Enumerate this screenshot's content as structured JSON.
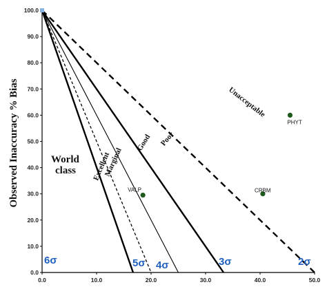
{
  "chart_data": {
    "type": "scatter",
    "title": "",
    "xlabel": "",
    "ylabel": "Observed Inaccuracy % Bias",
    "xlim": [
      0,
      50
    ],
    "ylim": [
      0,
      100
    ],
    "x_ticks": [
      "0.0",
      "10.0",
      "20.0",
      "30.0",
      "40.0",
      "50.0"
    ],
    "y_ticks": [
      "0.0",
      "10.0",
      "20.0",
      "30.0",
      "40.0",
      "50.0",
      "60.0",
      "70.0",
      "80.0",
      "90.0",
      "100.0"
    ],
    "grid": false,
    "points": [
      {
        "label": "PHYT",
        "x": 45.5,
        "y": 60.0,
        "color": "#1e5a1e"
      },
      {
        "label": "CRBM",
        "x": 40.5,
        "y": 30.0,
        "color": "#1e5a1e"
      },
      {
        "label": "VALP",
        "x": 18.5,
        "y": 29.5,
        "color": "#1e5a1e"
      }
    ],
    "zones": {
      "world_class_line1": "World",
      "world_class_line2": "class",
      "excellent": "Excellent",
      "marginal": "Marginal",
      "good": "Good",
      "poor": "Poor",
      "unacceptable": "Unacceptable"
    },
    "sigma_lines": [
      {
        "label": "6σ",
        "x_intercept": 0.0,
        "style": "none"
      },
      {
        "label": "5σ",
        "x_intercept": 16.7,
        "style": "solid-thick"
      },
      {
        "label": "",
        "x_intercept": 20.0,
        "style": "dashed-thin"
      },
      {
        "label": "4σ",
        "x_intercept": 25.0,
        "style": "solid-thin"
      },
      {
        "label": "3σ",
        "x_intercept": 33.3,
        "style": "solid-thick"
      },
      {
        "label": "2σ",
        "x_intercept": 50.0,
        "style": "dashed-thick"
      }
    ],
    "colors": {
      "sigma_text": "#1f5fbf",
      "points": "#1e5a1e",
      "origin_marker": "#8ab4e0"
    }
  }
}
